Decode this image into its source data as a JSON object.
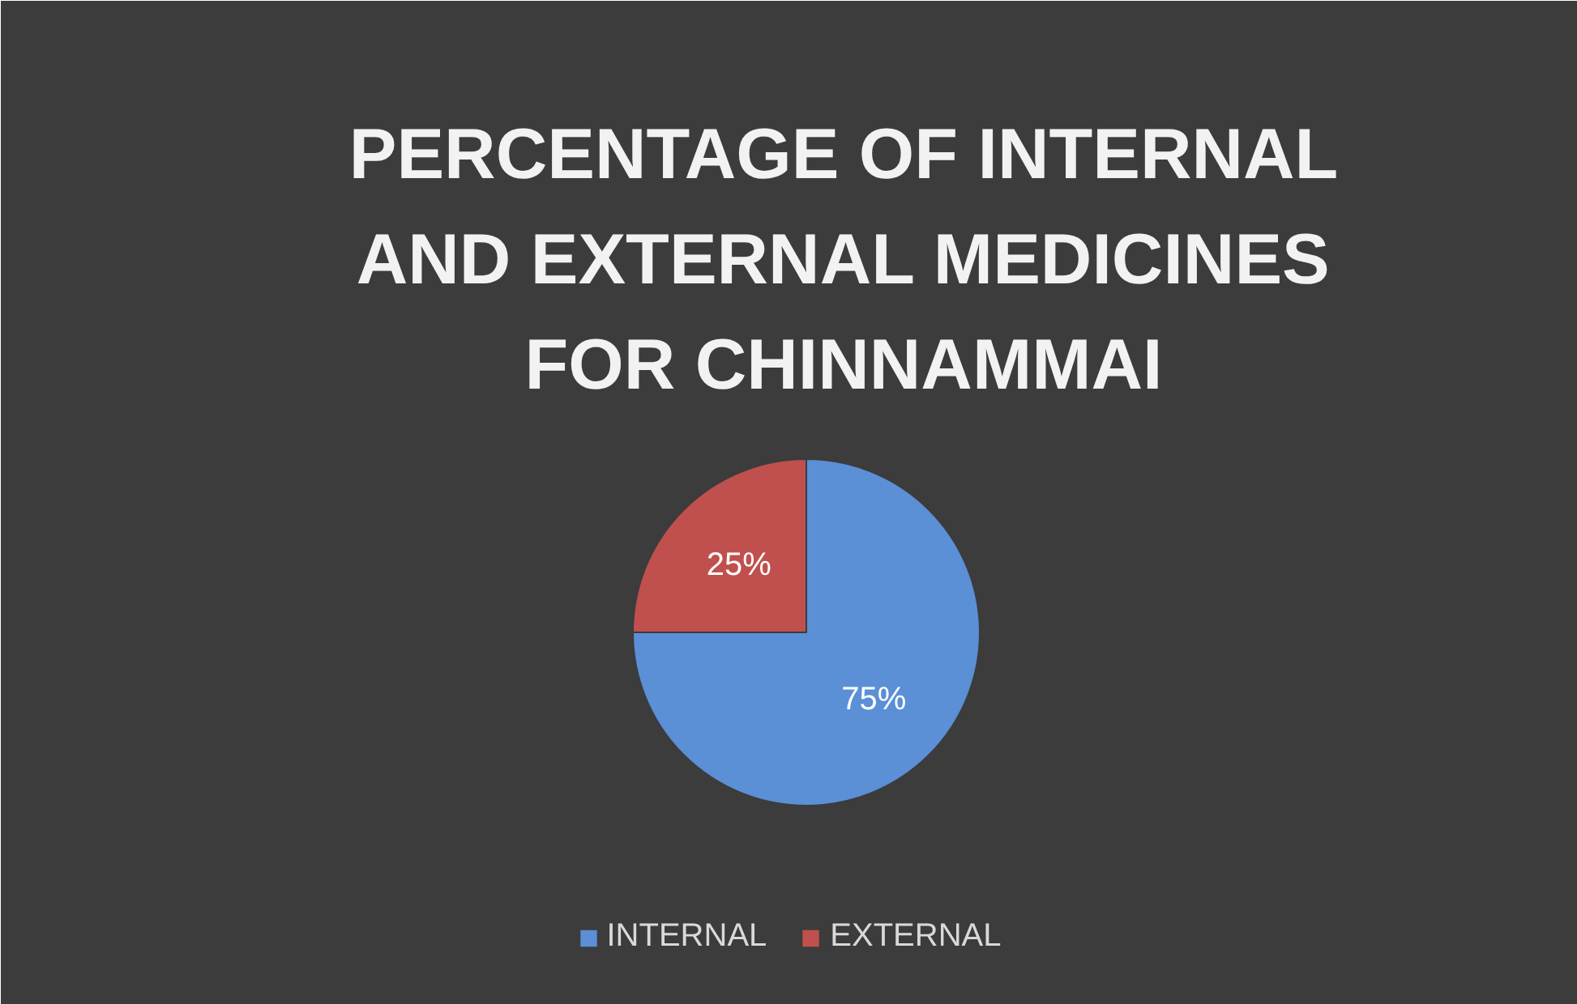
{
  "chart_data": {
    "type": "pie",
    "title": "PERCENTAGE OF INTERNAL AND EXTERNAL MEDICINES FOR CHINNAMMAI",
    "categories": [
      "INTERNAL",
      "EXTERNAL"
    ],
    "values": [
      75,
      25
    ],
    "colors": [
      "#5b8fd6",
      "#c0504d"
    ],
    "value_labels": [
      "75%",
      "25%"
    ],
    "legend": "bottom"
  }
}
